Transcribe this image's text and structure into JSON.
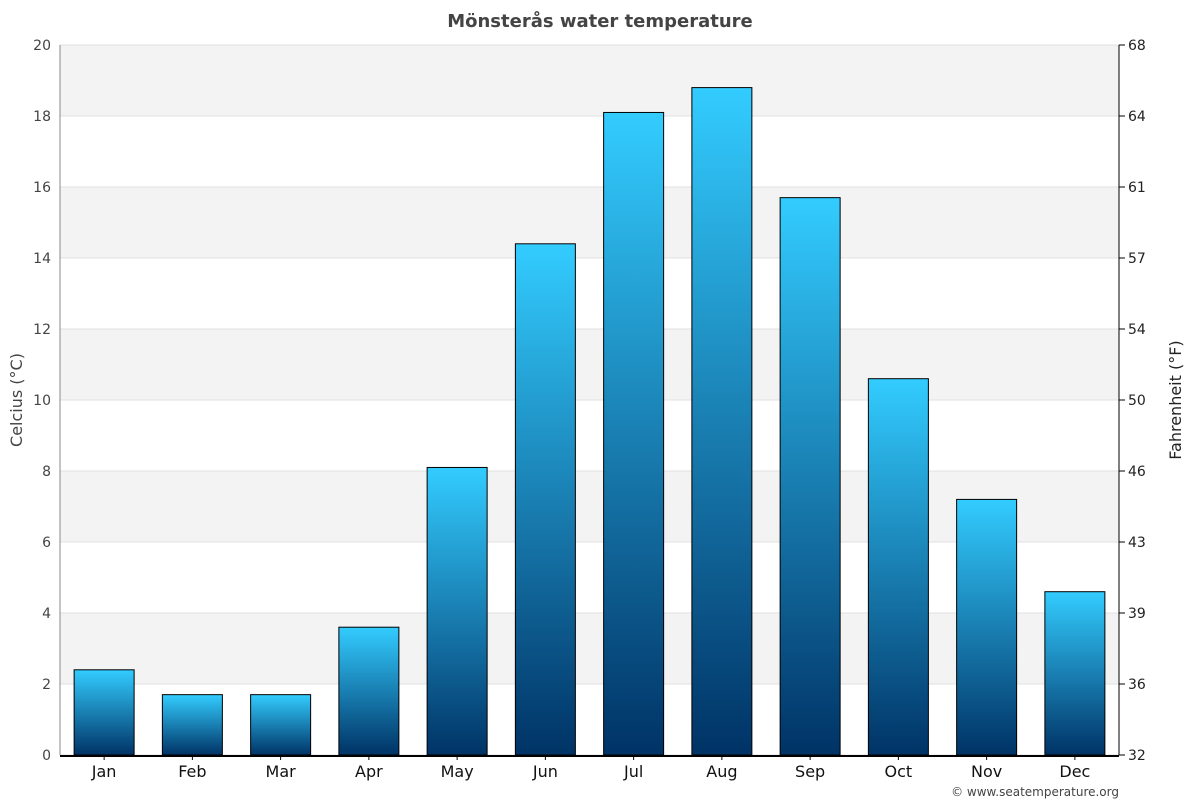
{
  "chart_data": {
    "type": "bar",
    "title": "Mönsterås water temperature",
    "ylabel": "Celcius (°C)",
    "ylabel_right": "Fahrenheit (°F)",
    "ylim": [
      0,
      20
    ],
    "yticks": [
      0,
      2,
      4,
      6,
      8,
      10,
      12,
      14,
      16,
      18,
      20
    ],
    "yticks_right": [
      "32",
      "36",
      "39",
      "43",
      "46",
      "50",
      "54",
      "57",
      "61",
      "64",
      "68"
    ],
    "categories": [
      "Jan",
      "Feb",
      "Mar",
      "Apr",
      "May",
      "Jun",
      "Jul",
      "Aug",
      "Sep",
      "Oct",
      "Nov",
      "Dec"
    ],
    "values": [
      2.4,
      1.7,
      1.7,
      3.6,
      8.1,
      14.4,
      18.1,
      18.8,
      15.7,
      10.6,
      7.2,
      4.6
    ],
    "grid": true,
    "colors": {
      "bar_top": "#33ccff",
      "bar_bottom": "#003366",
      "band": "#f3f3f3"
    }
  },
  "footer": "© www.seatemperature.org"
}
